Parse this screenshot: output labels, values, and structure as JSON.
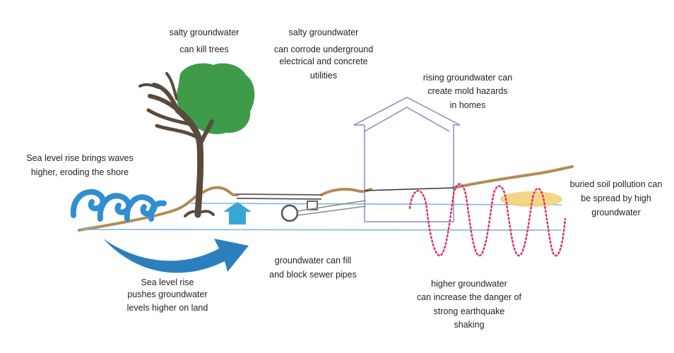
{
  "labels": {
    "trees": [
      "salty groundwater",
      "can kill trees"
    ],
    "utilities": [
      "salty groundwater",
      "can corrode underground",
      "electrical and concrete",
      "utilities"
    ],
    "mold": [
      "rising groundwater can",
      "create mold hazards",
      "in homes"
    ],
    "waves": [
      "Sea level rise brings waves",
      "higher, eroding the shore"
    ],
    "pollution": [
      "buried soil pollution can",
      "be spread by high",
      "groundwater"
    ],
    "sea_level": [
      "Sea level rise",
      "pushes groundwater",
      "levels higher on land"
    ],
    "sewer": [
      "groundwater can fill",
      "and block sewer pipes"
    ],
    "earthquake": [
      "higher groundwater",
      "can increase the danger of",
      "strong earthquake",
      "shaking"
    ]
  },
  "colors": {
    "ground": "#b08d57",
    "water_line": "#7fb7e6",
    "wave": "#2f8fd0",
    "arrow": "#2c7fbf",
    "up_arrow": "#3aa6d6",
    "tree_canopy": "#3e9b4a",
    "tree_trunk": "#5a4a3c",
    "house": "#8888c8",
    "pipe": "#555555",
    "pollution": "#f3d27a",
    "quake": "#e0306c"
  }
}
